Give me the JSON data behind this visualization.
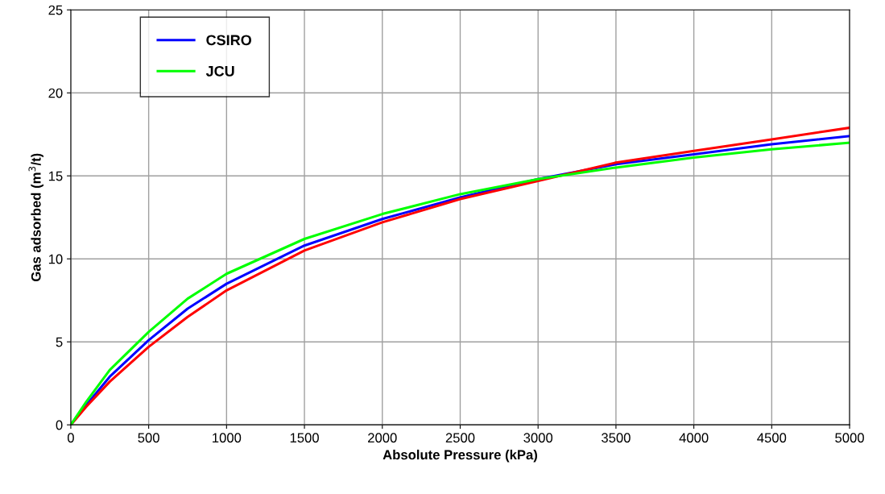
{
  "chart_data": {
    "type": "line",
    "xlabel": "Absolute Pressure (kPa)",
    "ylabel": "Gas adsorbed (m$^{3}$/t)",
    "x": [
      0,
      100,
      250,
      500,
      750,
      1000,
      1500,
      2000,
      2500,
      3000,
      3500,
      4000,
      4500,
      5000
    ],
    "series": [
      {
        "name": "CSIRO",
        "color": "#0000ff",
        "values": [
          0,
          1.2,
          2.9,
          5.1,
          7.0,
          8.5,
          10.8,
          12.4,
          13.7,
          14.8,
          15.7,
          16.3,
          16.9,
          17.4
        ]
      },
      {
        "color": "#ff0000",
        "values": [
          0,
          1.1,
          2.6,
          4.7,
          6.5,
          8.1,
          10.5,
          12.2,
          13.6,
          14.7,
          15.8,
          16.5,
          17.2,
          17.9
        ]
      },
      {
        "name": "JCU",
        "color": "#00ff00",
        "values": [
          0,
          1.4,
          3.3,
          5.6,
          7.6,
          9.1,
          11.2,
          12.7,
          13.9,
          14.8,
          15.5,
          16.1,
          16.6,
          17.0
        ]
      }
    ],
    "xlim": [
      0,
      5000
    ],
    "xticks": [
      0,
      500,
      1000,
      1500,
      2000,
      2500,
      3000,
      3500,
      4000,
      4500,
      5000
    ],
    "ylim": [
      0,
      25
    ],
    "yticks": [
      0,
      5,
      10,
      15,
      20,
      25
    ],
    "grid": true,
    "legend": "top left",
    "marker": "none",
    "line_style": "solid"
  }
}
